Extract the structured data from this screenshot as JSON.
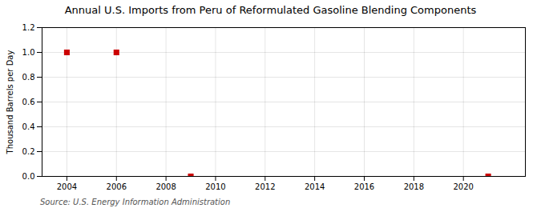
{
  "chart_data": {
    "type": "scatter",
    "title": "Annual U.S. Imports from Peru of Reformulated Gasoline Blending Components",
    "ylabel": "Thousand Barrels per Day",
    "source": "Source: U.S. Energy Information Administration",
    "x": [
      2004,
      2006,
      2009,
      2021
    ],
    "values": [
      1.0,
      1.0,
      0.0,
      0.0
    ],
    "color": "#cc0000",
    "marker": "square",
    "xlim": [
      2003.0,
      2022.5
    ],
    "ylim": [
      0.0,
      1.2
    ],
    "xticks": [
      2004,
      2006,
      2008,
      2010,
      2012,
      2014,
      2016,
      2018,
      2020
    ],
    "yticks": [
      {
        "value": 0.0,
        "label": "0.0"
      },
      0.2,
      0.4,
      0.6,
      0.8,
      {
        "value": 1.0,
        "label": "1.0"
      },
      1.2
    ],
    "grid": true
  }
}
